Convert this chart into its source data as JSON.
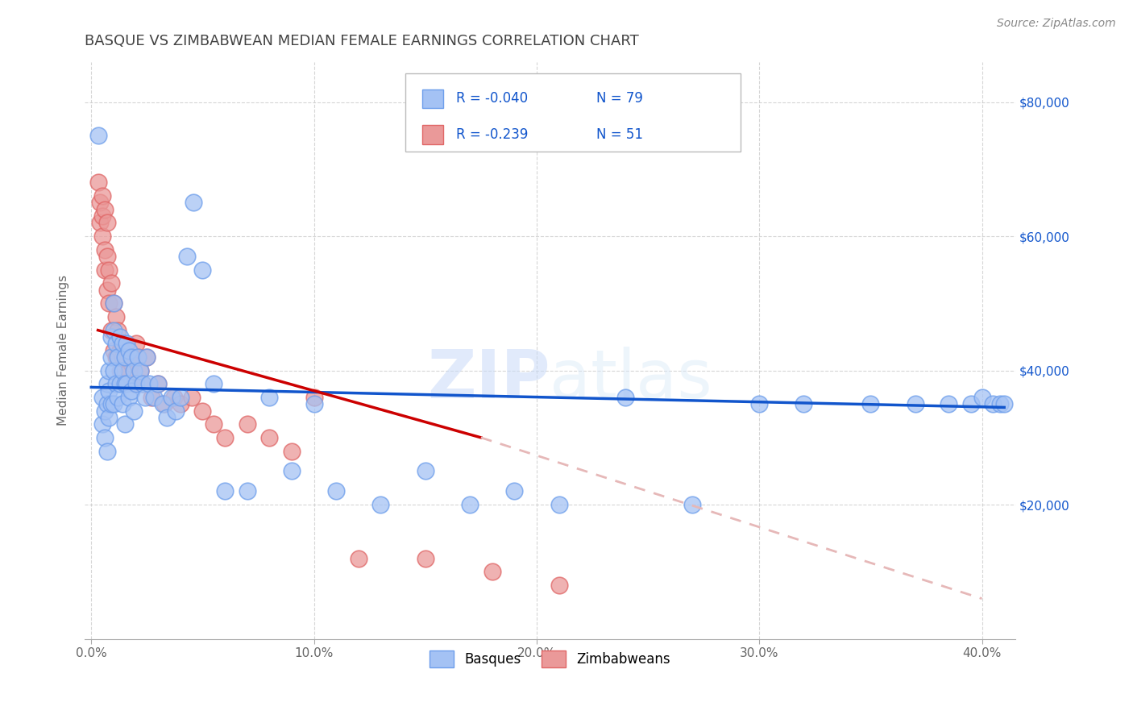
{
  "title": "BASQUE VS ZIMBABWEAN MEDIAN FEMALE EARNINGS CORRELATION CHART",
  "source": "Source: ZipAtlas.com",
  "ylabel": "Median Female Earnings",
  "xlabel_ticks": [
    "0.0%",
    "10.0%",
    "20.0%",
    "30.0%",
    "40.0%"
  ],
  "xlabel_vals": [
    0.0,
    0.1,
    0.2,
    0.3,
    0.4
  ],
  "ylabel_ticks": [
    "$20,000",
    "$40,000",
    "$60,000",
    "$80,000"
  ],
  "ylabel_vals": [
    20000,
    40000,
    60000,
    80000
  ],
  "ylim": [
    0,
    86000
  ],
  "xlim": [
    -0.003,
    0.415
  ],
  "background_color": "#ffffff",
  "grid_color": "#cccccc",
  "watermark": "ZIPatlas",
  "legend_R_basque": "-0.040",
  "legend_N_basque": "79",
  "legend_R_zimb": "-0.239",
  "legend_N_zimb": "51",
  "basque_color": "#a4c2f4",
  "basque_edge_color": "#6d9eeb",
  "zimb_color": "#ea9999",
  "zimb_edge_color": "#e06666",
  "trend_basque_color": "#1155cc",
  "trend_zimb_color": "#cc0000",
  "trend_zimb_ext_color": "#e6b8b8",
  "blue_text": "#1155cc",
  "title_color": "#434343",
  "label_color": "#666666",
  "basque_x": [
    0.003,
    0.005,
    0.005,
    0.006,
    0.006,
    0.007,
    0.007,
    0.007,
    0.008,
    0.008,
    0.008,
    0.009,
    0.009,
    0.009,
    0.01,
    0.01,
    0.01,
    0.01,
    0.011,
    0.011,
    0.012,
    0.012,
    0.013,
    0.013,
    0.014,
    0.014,
    0.014,
    0.015,
    0.015,
    0.015,
    0.016,
    0.016,
    0.017,
    0.017,
    0.018,
    0.018,
    0.019,
    0.019,
    0.02,
    0.021,
    0.022,
    0.023,
    0.024,
    0.025,
    0.026,
    0.028,
    0.03,
    0.032,
    0.034,
    0.036,
    0.038,
    0.04,
    0.043,
    0.046,
    0.05,
    0.055,
    0.06,
    0.07,
    0.08,
    0.09,
    0.1,
    0.11,
    0.13,
    0.15,
    0.17,
    0.19,
    0.21,
    0.24,
    0.27,
    0.3,
    0.32,
    0.35,
    0.37,
    0.385,
    0.395,
    0.4,
    0.405,
    0.408,
    0.41
  ],
  "basque_y": [
    75000,
    36000,
    32000,
    34000,
    30000,
    38000,
    35000,
    28000,
    40000,
    37000,
    33000,
    45000,
    42000,
    35000,
    50000,
    46000,
    40000,
    35000,
    44000,
    38000,
    42000,
    36000,
    45000,
    38000,
    44000,
    40000,
    35000,
    42000,
    38000,
    32000,
    44000,
    38000,
    43000,
    36000,
    42000,
    37000,
    40000,
    34000,
    38000,
    42000,
    40000,
    38000,
    36000,
    42000,
    38000,
    36000,
    38000,
    35000,
    33000,
    36000,
    34000,
    36000,
    57000,
    65000,
    55000,
    38000,
    22000,
    22000,
    36000,
    25000,
    35000,
    22000,
    20000,
    25000,
    20000,
    22000,
    20000,
    36000,
    20000,
    35000,
    35000,
    35000,
    35000,
    35000,
    35000,
    36000,
    35000,
    35000,
    35000
  ],
  "zimb_x": [
    0.003,
    0.004,
    0.004,
    0.005,
    0.005,
    0.005,
    0.006,
    0.006,
    0.006,
    0.007,
    0.007,
    0.007,
    0.008,
    0.008,
    0.009,
    0.009,
    0.01,
    0.01,
    0.011,
    0.011,
    0.012,
    0.013,
    0.013,
    0.014,
    0.015,
    0.016,
    0.017,
    0.018,
    0.019,
    0.02,
    0.021,
    0.022,
    0.023,
    0.025,
    0.027,
    0.03,
    0.033,
    0.037,
    0.04,
    0.045,
    0.05,
    0.055,
    0.06,
    0.07,
    0.08,
    0.09,
    0.1,
    0.12,
    0.15,
    0.18,
    0.21
  ],
  "zimb_y": [
    68000,
    65000,
    62000,
    66000,
    63000,
    60000,
    64000,
    58000,
    55000,
    62000,
    57000,
    52000,
    55000,
    50000,
    53000,
    46000,
    50000,
    43000,
    48000,
    42000,
    46000,
    43000,
    40000,
    42000,
    44000,
    42000,
    40000,
    41000,
    38000,
    44000,
    42000,
    40000,
    38000,
    42000,
    36000,
    38000,
    35000,
    36000,
    35000,
    36000,
    34000,
    32000,
    30000,
    32000,
    30000,
    28000,
    36000,
    12000,
    12000,
    10000,
    8000
  ],
  "trend_basque_x0": 0.0,
  "trend_basque_x1": 0.41,
  "trend_basque_y0": 37500,
  "trend_basque_y1": 34500,
  "trend_zimb_solid_x0": 0.003,
  "trend_zimb_solid_x1": 0.175,
  "trend_zimb_solid_y0": 46000,
  "trend_zimb_solid_y1": 30000,
  "trend_zimb_dash_x0": 0.175,
  "trend_zimb_dash_x1": 0.4,
  "trend_zimb_dash_y0": 30000,
  "trend_zimb_dash_y1": 6000
}
